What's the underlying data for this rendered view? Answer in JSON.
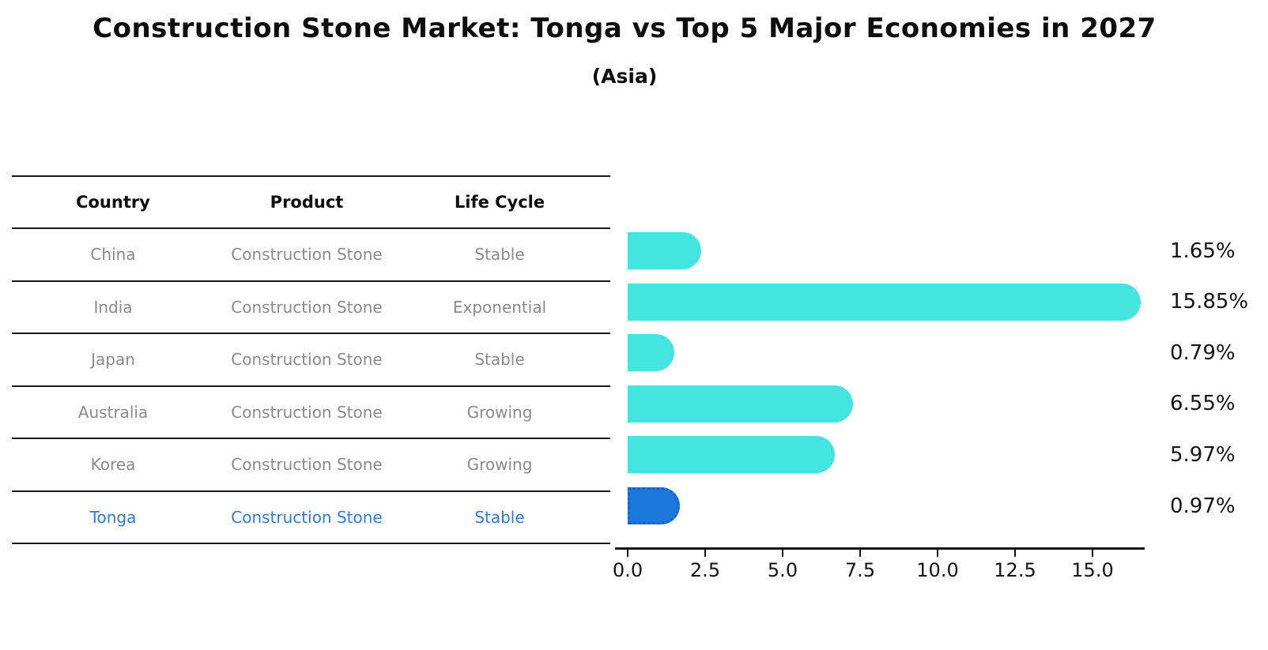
{
  "header": {
    "title": "Construction Stone Market: Tonga vs Top 5 Major Economies in 2027",
    "subtitle": "(Asia)"
  },
  "table": {
    "headers": [
      "Country",
      "Product",
      "Life Cycle"
    ],
    "rows": [
      {
        "country": "China",
        "product": "Construction Stone",
        "life_cycle": "Stable",
        "highlighted": false
      },
      {
        "country": "India",
        "product": "Construction Stone",
        "life_cycle": "Exponential",
        "highlighted": false
      },
      {
        "country": "Japan",
        "product": "Construction Stone",
        "life_cycle": "Stable",
        "highlighted": false
      },
      {
        "country": "Australia",
        "product": "Construction Stone",
        "life_cycle": "Growing",
        "highlighted": false
      },
      {
        "country": "Korea",
        "product": "Construction Stone",
        "life_cycle": "Growing",
        "highlighted": false
      },
      {
        "country": "Tonga",
        "product": "Construction Stone",
        "life_cycle": "Stable",
        "highlighted": true
      }
    ]
  },
  "chart_data": {
    "type": "bar",
    "orientation": "horizontal",
    "title": "Construction Stone Market: Tonga vs Top 5 Major Economies in 2027",
    "subtitle": "(Asia)",
    "categories": [
      "China",
      "India",
      "Japan",
      "Australia",
      "Korea",
      "Tonga"
    ],
    "values": [
      1.65,
      15.85,
      0.79,
      6.55,
      5.97,
      0.97
    ],
    "value_labels": [
      "1.65%",
      "15.85%",
      "0.79%",
      "6.55%",
      "5.97%",
      "0.97%"
    ],
    "x_ticks": [
      "0.0",
      "2.5",
      "5.0",
      "7.5",
      "10.0",
      "12.5",
      "15.0"
    ],
    "x_tick_values": [
      0,
      2.5,
      5,
      7.5,
      10,
      12.5,
      15
    ],
    "xlim": [
      0,
      16.6
    ],
    "grid": false,
    "legend": false,
    "highlight_index": 5,
    "colors": {
      "bar_default": "#45e4e0",
      "bar_highlight": "#1e78dc",
      "bar_highlight_border": "#1563cf",
      "highlight_text": "#3579c8",
      "row_text": "#8a8a8a",
      "axis_text": "#141414"
    }
  }
}
